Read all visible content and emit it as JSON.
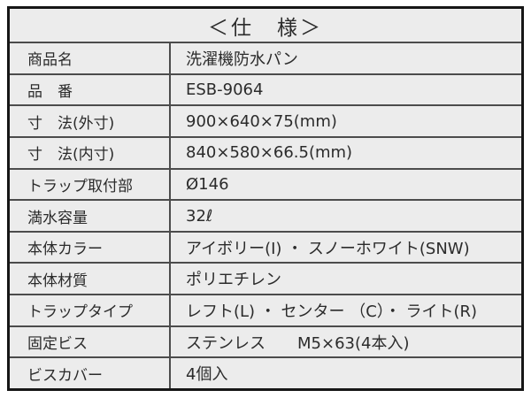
{
  "table": {
    "title": "＜仕　様＞",
    "rows": [
      {
        "label": "商品名",
        "value": "洗濯機防水パン"
      },
      {
        "label": "品　番",
        "value": "ESB-9064"
      },
      {
        "label": "寸　法(外寸)",
        "value": "900×640×75(mm)"
      },
      {
        "label": "寸　法(内寸)",
        "value": "840×580×66.5(mm)"
      },
      {
        "label": "トラップ取付部",
        "value": "Ø146"
      },
      {
        "label": "満水容量",
        "value": "32ℓ"
      },
      {
        "label": "本体カラー",
        "value": "アイボリー(I) ・ スノーホワイト(SNW)"
      },
      {
        "label": "本体材質",
        "value": "ポリエチレン"
      },
      {
        "label": "トラップタイプ",
        "value": "レフト(L) ・ センター （C）・ ライト(R)"
      },
      {
        "label": "固定ビス",
        "value": "ステンレス　　M5×63(4本入)"
      },
      {
        "label": "ビスカバー",
        "value": "4個入"
      }
    ],
    "colors": {
      "cell_background": "#ececec",
      "outer_border": "#161616",
      "inner_rule": "#4c4c4c",
      "text": "#2b2b2b",
      "page_background": "#ffffff"
    }
  }
}
